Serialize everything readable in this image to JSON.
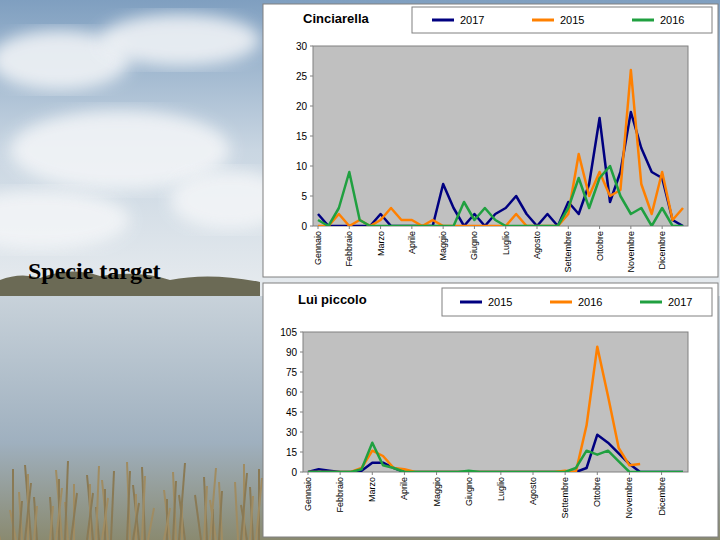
{
  "page": {
    "heading": "Specie target"
  },
  "chart_data": [
    {
      "type": "line",
      "title": "Cinciarella",
      "categories": [
        "Gennaio",
        null,
        null,
        "Febbraio",
        null,
        null,
        "Marzo",
        null,
        null,
        "Aprile",
        null,
        null,
        "Maggio",
        null,
        null,
        "Giugno",
        null,
        null,
        "Luglio",
        null,
        null,
        "Agosto",
        null,
        null,
        "Settembre",
        null,
        null,
        "Ottobre",
        null,
        null,
        "Novembre",
        null,
        null,
        "Dicembre",
        null,
        null
      ],
      "series": [
        {
          "name": "2017",
          "color": "#000080",
          "values": [
            2,
            0,
            0,
            0,
            0,
            0,
            2,
            0,
            0,
            0,
            0,
            0,
            7,
            3,
            0,
            2,
            0,
            2,
            3,
            5,
            2,
            0,
            2,
            0,
            4,
            2,
            7,
            18,
            4,
            9,
            19,
            13,
            9,
            8,
            1,
            0
          ]
        },
        {
          "name": "2015",
          "color": "#ff8000",
          "values": [
            0,
            0,
            2,
            0,
            1,
            0,
            1,
            3,
            1,
            1,
            0,
            1,
            0,
            0,
            0,
            0,
            0,
            0,
            0,
            2,
            0,
            0,
            0,
            0,
            2,
            12,
            5,
            9,
            5,
            6,
            26,
            7,
            2,
            9,
            1,
            3
          ]
        },
        {
          "name": "2016",
          "color": "#20a040",
          "values": [
            1,
            0,
            3,
            9,
            1,
            0,
            0,
            0,
            0,
            0,
            0,
            0,
            0,
            0,
            4,
            1,
            3,
            1,
            0,
            0,
            0,
            0,
            0,
            0,
            3,
            8,
            3,
            8,
            10,
            5,
            2,
            3,
            0,
            3,
            0,
            0
          ]
        }
      ],
      "ylim": [
        0,
        30
      ],
      "yticks": [
        0,
        5,
        10,
        15,
        20,
        25,
        30
      ],
      "grid": false,
      "legend": "top"
    },
    {
      "type": "line",
      "title": "Luì piccolo",
      "categories": [
        "Gennaio",
        null,
        null,
        "Febbraio",
        null,
        null,
        "Marzo",
        null,
        null,
        "Aprile",
        null,
        null,
        "Maggio",
        null,
        null,
        "Giugno",
        null,
        null,
        "Luglio",
        null,
        null,
        "Agosto",
        null,
        null,
        "Settembre",
        null,
        null,
        "Ottobre",
        null,
        null,
        "Novembre",
        null,
        null,
        "Dicembre",
        null,
        null
      ],
      "series": [
        {
          "name": "2015",
          "color": "#000080",
          "values": [
            0,
            2,
            1,
            0,
            0,
            1,
            7,
            7,
            3,
            0,
            0,
            0,
            0,
            0,
            0,
            0,
            0,
            0,
            0,
            0,
            0,
            0,
            0,
            0,
            0,
            0,
            3,
            28,
            22,
            14,
            6,
            0,
            0,
            0,
            0,
            0
          ]
        },
        {
          "name": "2016",
          "color": "#ff8000",
          "values": [
            0,
            0,
            0,
            0,
            0,
            3,
            16,
            12,
            3,
            2,
            0,
            0,
            0,
            0,
            0,
            0,
            0,
            0,
            0,
            0,
            0,
            0,
            0,
            0,
            1,
            0,
            35,
            94,
            57,
            18,
            5,
            6,
            null,
            null,
            null,
            null
          ]
        },
        {
          "name": "2017",
          "color": "#20a040",
          "values": [
            0,
            0,
            0,
            0,
            0,
            2,
            22,
            5,
            3,
            0,
            0,
            0,
            0,
            0,
            0,
            1,
            0,
            0,
            0,
            0,
            0,
            0,
            0,
            0,
            0,
            3,
            16,
            13,
            16,
            8,
            0,
            0,
            0,
            0,
            0,
            0
          ]
        }
      ],
      "ylim": [
        0,
        105
      ],
      "yticks": [
        0,
        15,
        30,
        45,
        60,
        75,
        90,
        105
      ],
      "grid": false,
      "legend": "top"
    }
  ]
}
